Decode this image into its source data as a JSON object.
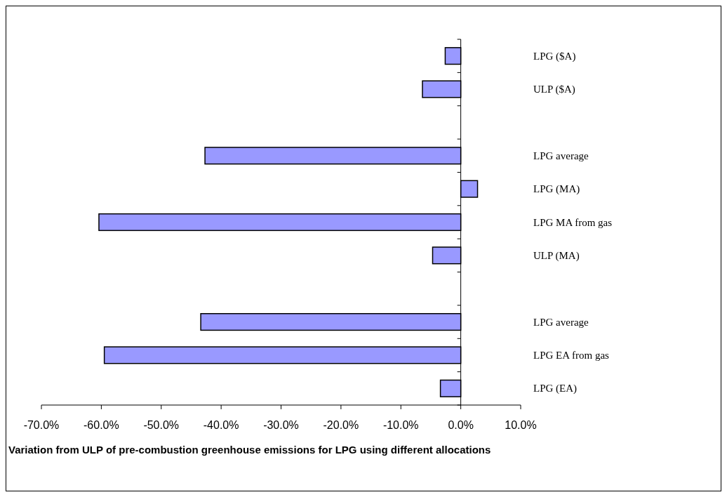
{
  "chart_data": {
    "type": "bar",
    "orientation": "horizontal",
    "xlabel": "Variation from ULP of pre-combustion greenhouse emissions for LPG using different allocations",
    "categories": [
      "LPG ($A)",
      "ULP ($A)",
      null,
      "LPG average",
      "LPG (MA)",
      "LPG MA from gas",
      "ULP (MA)",
      null,
      "LPG average",
      "LPG EA from gas",
      "LPG (EA)"
    ],
    "values": [
      -2.6,
      -6.4,
      null,
      -42.7,
      2.8,
      -60.4,
      -4.7,
      null,
      -43.4,
      -59.5,
      -3.4
    ],
    "color": "#9999ff",
    "xlim": [
      -70,
      10
    ],
    "xticks": [
      {
        "value": -70,
        "label": "-70.0%"
      },
      {
        "value": -60,
        "label": "-60.0%"
      },
      {
        "value": -50,
        "label": "-50.0%"
      },
      {
        "value": -40,
        "label": "-40.0%"
      },
      {
        "value": -30,
        "label": "-30.0%"
      },
      {
        "value": -20,
        "label": "-20.0%"
      },
      {
        "value": -10,
        "label": "-10.0%"
      },
      {
        "value": 0,
        "label": "0.0%"
      },
      {
        "value": 10,
        "label": "10.0%"
      }
    ],
    "tick_labels": "x"
  }
}
